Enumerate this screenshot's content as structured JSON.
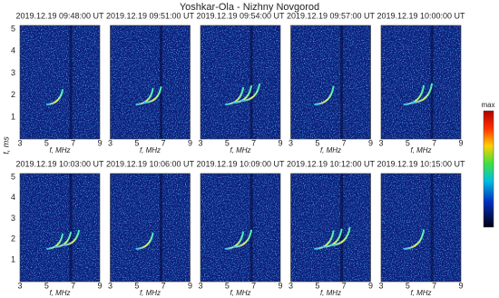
{
  "title": "Yoshkar-Ola - Nizhny Novgorod",
  "y_axis_label": "t, ms",
  "x_axis_label": "f, MHz",
  "colorbar_label": "max",
  "x_ticks": [
    "3",
    "5",
    "7",
    "9"
  ],
  "y_ticks": [
    "1",
    "2",
    "3",
    "4",
    "5"
  ],
  "panels": [
    {
      "time": "2019.12.19  09:48:00 UT"
    },
    {
      "time": "2019.12.19  09:51:00 UT"
    },
    {
      "time": "2019.12.19  09:54:00 UT"
    },
    {
      "time": "2019.12.19  09:57:00 UT"
    },
    {
      "time": "2019.12.19  10:00:00 UT"
    },
    {
      "time": "2019.12.19  10:03:00 UT"
    },
    {
      "time": "2019.12.19  10:06:00 UT"
    },
    {
      "time": "2019.12.19  10:09:00 UT"
    },
    {
      "time": "2019.12.19  10:12:00 UT"
    },
    {
      "time": "2019.12.19  10:15:00 UT"
    }
  ]
}
